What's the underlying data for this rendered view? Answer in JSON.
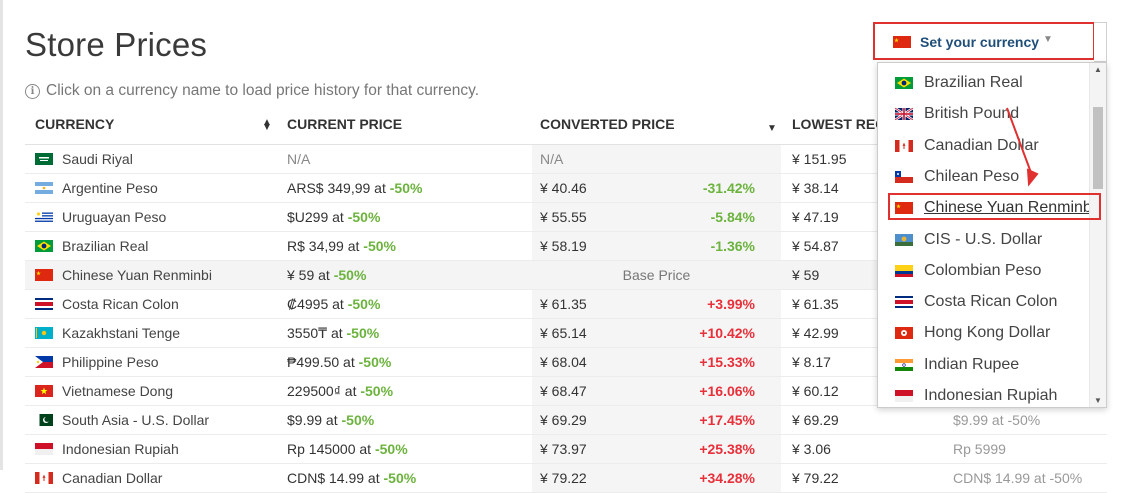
{
  "page": {
    "title": "Store Prices",
    "hint": "Click on a currency name to load price history for that currency."
  },
  "table": {
    "headers": {
      "currency": "CURRENCY",
      "current_price": "CURRENT PRICE",
      "converted_price": "CONVERTED PRICE",
      "lowest": "LOWEST REC"
    },
    "rows": [
      {
        "flag": "sa",
        "name": "Saudi Riyal",
        "current": "N/A",
        "discount": "",
        "converted": "N/A",
        "pct": "",
        "pct_color": "",
        "lowest": "¥ 151.95",
        "base": false
      },
      {
        "flag": "ar",
        "name": "Argentine Peso",
        "current": "ARS$ 349,99 at",
        "discount": "-50%",
        "converted": "¥ 40.46",
        "pct": "-31.42%",
        "pct_color": "green",
        "lowest": "¥ 38.14",
        "base": false
      },
      {
        "flag": "uy",
        "name": "Uruguayan Peso",
        "current": "$U299 at",
        "discount": "-50%",
        "converted": "¥ 55.55",
        "pct": "-5.84%",
        "pct_color": "green",
        "lowest": "¥ 47.19",
        "base": false
      },
      {
        "flag": "br",
        "name": "Brazilian Real",
        "current": "R$ 34,99 at",
        "discount": "-50%",
        "converted": "¥ 58.19",
        "pct": "-1.36%",
        "pct_color": "green",
        "lowest": "¥ 54.87",
        "base": false
      },
      {
        "flag": "cn",
        "name": "Chinese Yuan Renminbi",
        "current": "¥ 59 at",
        "discount": "-50%",
        "converted": "",
        "pct": "",
        "pct_color": "",
        "lowest": "¥ 59",
        "base": true,
        "base_label": "Base Price"
      },
      {
        "flag": "cr",
        "name": "Costa Rican Colon",
        "current": "₡4995 at",
        "discount": "-50%",
        "converted": "¥ 61.35",
        "pct": "+3.99%",
        "pct_color": "red",
        "lowest": "¥ 61.35",
        "base": false
      },
      {
        "flag": "kz",
        "name": "Kazakhstani Tenge",
        "current": "3550₸ at",
        "discount": "-50%",
        "converted": "¥ 65.14",
        "pct": "+10.42%",
        "pct_color": "red",
        "lowest": "¥ 42.99",
        "base": false
      },
      {
        "flag": "ph",
        "name": "Philippine Peso",
        "current": "₱499.50 at",
        "discount": "-50%",
        "converted": "¥ 68.04",
        "pct": "+15.33%",
        "pct_color": "red",
        "lowest": "¥ 8.17",
        "base": false
      },
      {
        "flag": "vn",
        "name": "Vietnamese Dong",
        "current": "229500₫ at",
        "discount": "-50%",
        "converted": "¥ 68.47",
        "pct": "+16.06%",
        "pct_color": "red",
        "lowest": "¥ 60.12",
        "base": false
      },
      {
        "flag": "pk",
        "name": "South Asia - U.S. Dollar",
        "current": "$9.99 at",
        "discount": "-50%",
        "converted": "¥ 69.29",
        "pct": "+17.45%",
        "pct_color": "red",
        "lowest": "¥ 69.29",
        "base": false,
        "extra": "$9.99 at -50%"
      },
      {
        "flag": "id",
        "name": "Indonesian Rupiah",
        "current": "Rp 145000 at",
        "discount": "-50%",
        "converted": "¥ 73.97",
        "pct": "+25.38%",
        "pct_color": "red",
        "lowest": "¥ 3.06",
        "base": false,
        "extra": "Rp 5999"
      },
      {
        "flag": "ca",
        "name": "Canadian Dollar",
        "current": "CDN$ 14.99 at",
        "discount": "-50%",
        "converted": "¥ 79.22",
        "pct": "+34.28%",
        "pct_color": "red",
        "lowest": "¥ 79.22",
        "base": false,
        "extra": "CDN$ 14.99 at -50%"
      }
    ]
  },
  "currency_selector": {
    "label": "Set your currency",
    "flag": "cn",
    "options": [
      {
        "flag": "br",
        "label": "Brazilian Real"
      },
      {
        "flag": "gb",
        "label": "British Pound"
      },
      {
        "flag": "ca",
        "label": "Canadian Dollar"
      },
      {
        "flag": "cl",
        "label": "Chilean Peso"
      },
      {
        "flag": "cn",
        "label": "Chinese Yuan Renminb",
        "selected": true
      },
      {
        "flag": "cis",
        "label": "CIS - U.S. Dollar"
      },
      {
        "flag": "co",
        "label": "Colombian Peso"
      },
      {
        "flag": "cr",
        "label": "Costa Rican Colon"
      },
      {
        "flag": "hk",
        "label": "Hong Kong Dollar"
      },
      {
        "flag": "in",
        "label": "Indian Rupee"
      },
      {
        "flag": "id",
        "label": "Indonesian Rupiah"
      }
    ]
  },
  "colors": {
    "positive_pct": "#6cb33e",
    "negative_pct": "#e8303a",
    "highlight": "#e03030",
    "selector_text": "#1f4e79"
  }
}
